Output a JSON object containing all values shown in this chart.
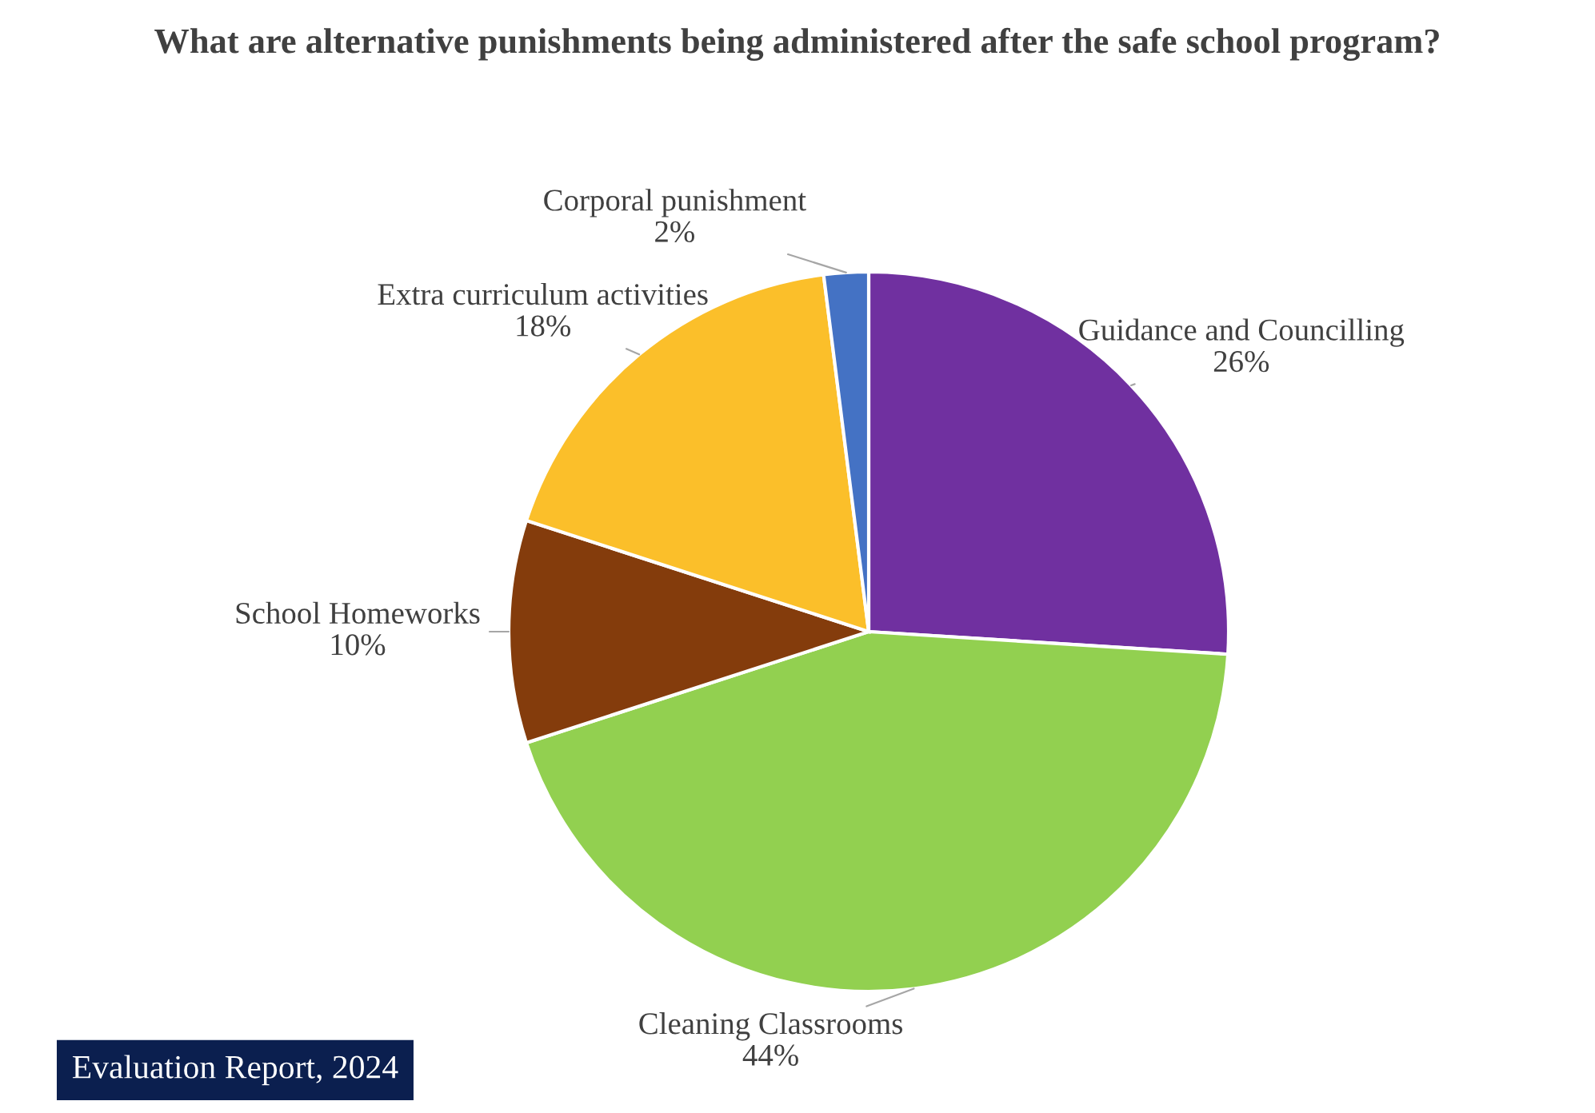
{
  "chart_data": {
    "type": "pie",
    "title": "What are alternative punishments being administered after the safe school program?",
    "categories": [
      "Guidance and Councilling",
      "Cleaning Classrooms",
      "School Homeworks",
      "Extra curriculum activities",
      "Corporal punishment"
    ],
    "values": [
      26,
      44,
      10,
      18,
      2
    ],
    "value_labels": [
      "26%",
      "44%",
      "10%",
      "18%",
      "2%"
    ],
    "colors": [
      "#7030a0",
      "#92d050",
      "#843c0c",
      "#fbbf2a",
      "#4472c4"
    ],
    "annotations": [
      "Evaluation Report, 2024"
    ]
  }
}
